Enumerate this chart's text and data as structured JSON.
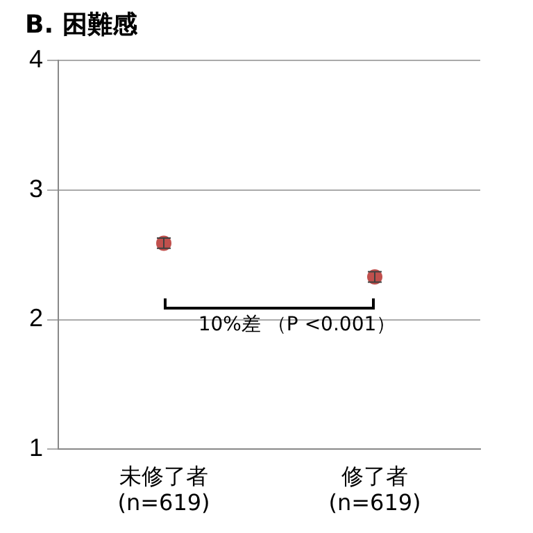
{
  "chart_data": {
    "type": "scatter",
    "title": "B. 困難感",
    "categories": [
      "未修了者\n(n=619)",
      "修了者\n(n=619)"
    ],
    "values": [
      2.59,
      2.33
    ],
    "errors": [
      0.04,
      0.04
    ],
    "color": "#c0504d",
    "marker": "circle",
    "ylim": [
      1,
      4
    ],
    "yticks": [
      1,
      2,
      3,
      4
    ],
    "grid": "y",
    "legend": false,
    "annotations": [
      "10%差 （P <0.001）"
    ]
  }
}
